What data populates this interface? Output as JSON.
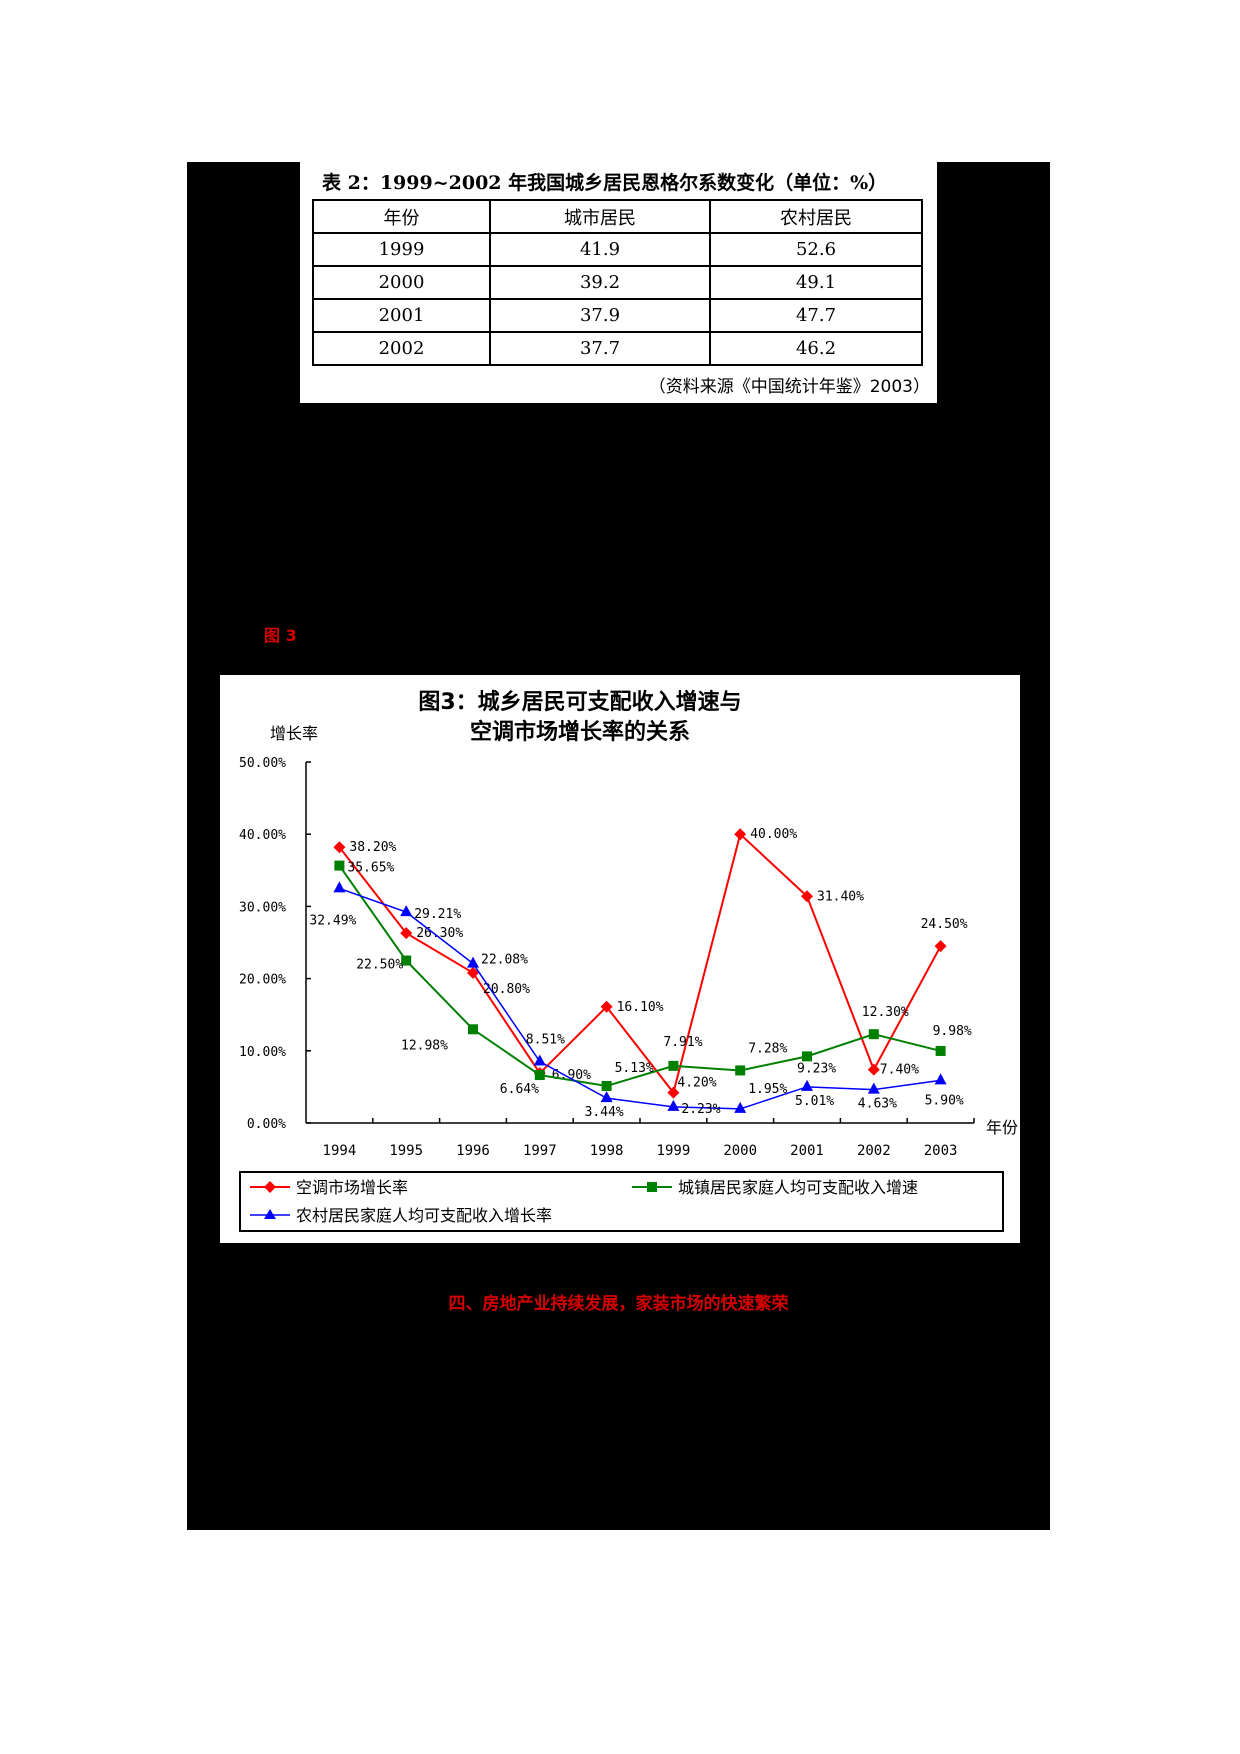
{
  "table": {
    "title": "表 2：1999~2002 年我国城乡居民恩格尔系数变化（单位：%）",
    "headers": [
      "年份",
      "城市居民",
      "农村居民"
    ],
    "rows": [
      [
        "1999",
        "41.9",
        "52.6"
      ],
      [
        "2000",
        "39.2",
        "49.1"
      ],
      [
        "2001",
        "37.9",
        "47.7"
      ],
      [
        "2002",
        "37.7",
        "46.2"
      ]
    ],
    "source": "（资料来源《中国统计年鉴》2003）"
  },
  "figure_label": "图 3",
  "section_heading": "四、房地产业持续发展，家装市场的快速繁荣",
  "chart_data": {
    "type": "line",
    "title": "图3：城乡居民可支配收入增速与空调市场增长率的关系",
    "title_lines": [
      "图3：城乡居民可支配收入增速与",
      "空调市场增长率的关系"
    ],
    "xlabel": "年份",
    "ylabel": "增长率",
    "ylim": [
      0,
      50
    ],
    "yticks": [
      "0.00%",
      "10.00%",
      "20.00%",
      "30.00%",
      "40.00%",
      "50.00%"
    ],
    "categories": [
      "1994",
      "1995",
      "1996",
      "1997",
      "1998",
      "1999",
      "2000",
      "2001",
      "2002",
      "2003"
    ],
    "grid": false,
    "legend_position": "bottom",
    "series": [
      {
        "name": "空调市场增长率",
        "color": "#ff0000",
        "marker": "diamond",
        "values": [
          38.2,
          26.3,
          20.8,
          6.9,
          16.1,
          4.2,
          40.0,
          31.4,
          7.4,
          24.5
        ],
        "labels": [
          "38.20%",
          "26.30%",
          "20.80%",
          "6.90%",
          "16.10%",
          "4.20%",
          "40.00%",
          "31.40%",
          "7.40%",
          "24.50%"
        ]
      },
      {
        "name": "城镇居民家庭人均可支配收入增速",
        "color": "#008000",
        "marker": "square",
        "values": [
          35.65,
          22.5,
          12.98,
          6.64,
          5.13,
          7.91,
          7.28,
          9.23,
          12.3,
          9.98
        ],
        "labels": [
          "35.65%",
          "22.50%",
          "12.98%",
          "6.64%",
          "5.13%",
          "7.91%",
          "7.28%",
          "9.23%",
          "12.30%",
          "9.98%"
        ]
      },
      {
        "name": "农村居民家庭人均可支配收入增长率",
        "color": "#0000ff",
        "marker": "triangle",
        "values": [
          32.49,
          29.21,
          22.08,
          8.51,
          3.44,
          2.23,
          1.95,
          5.01,
          4.63,
          5.9
        ],
        "labels": [
          "32.49%",
          "29.21%",
          "22.08%",
          "8.51%",
          "3.44%",
          "2.23%",
          "1.95%",
          "5.01%",
          "4.63%",
          "5.90%"
        ]
      }
    ]
  }
}
